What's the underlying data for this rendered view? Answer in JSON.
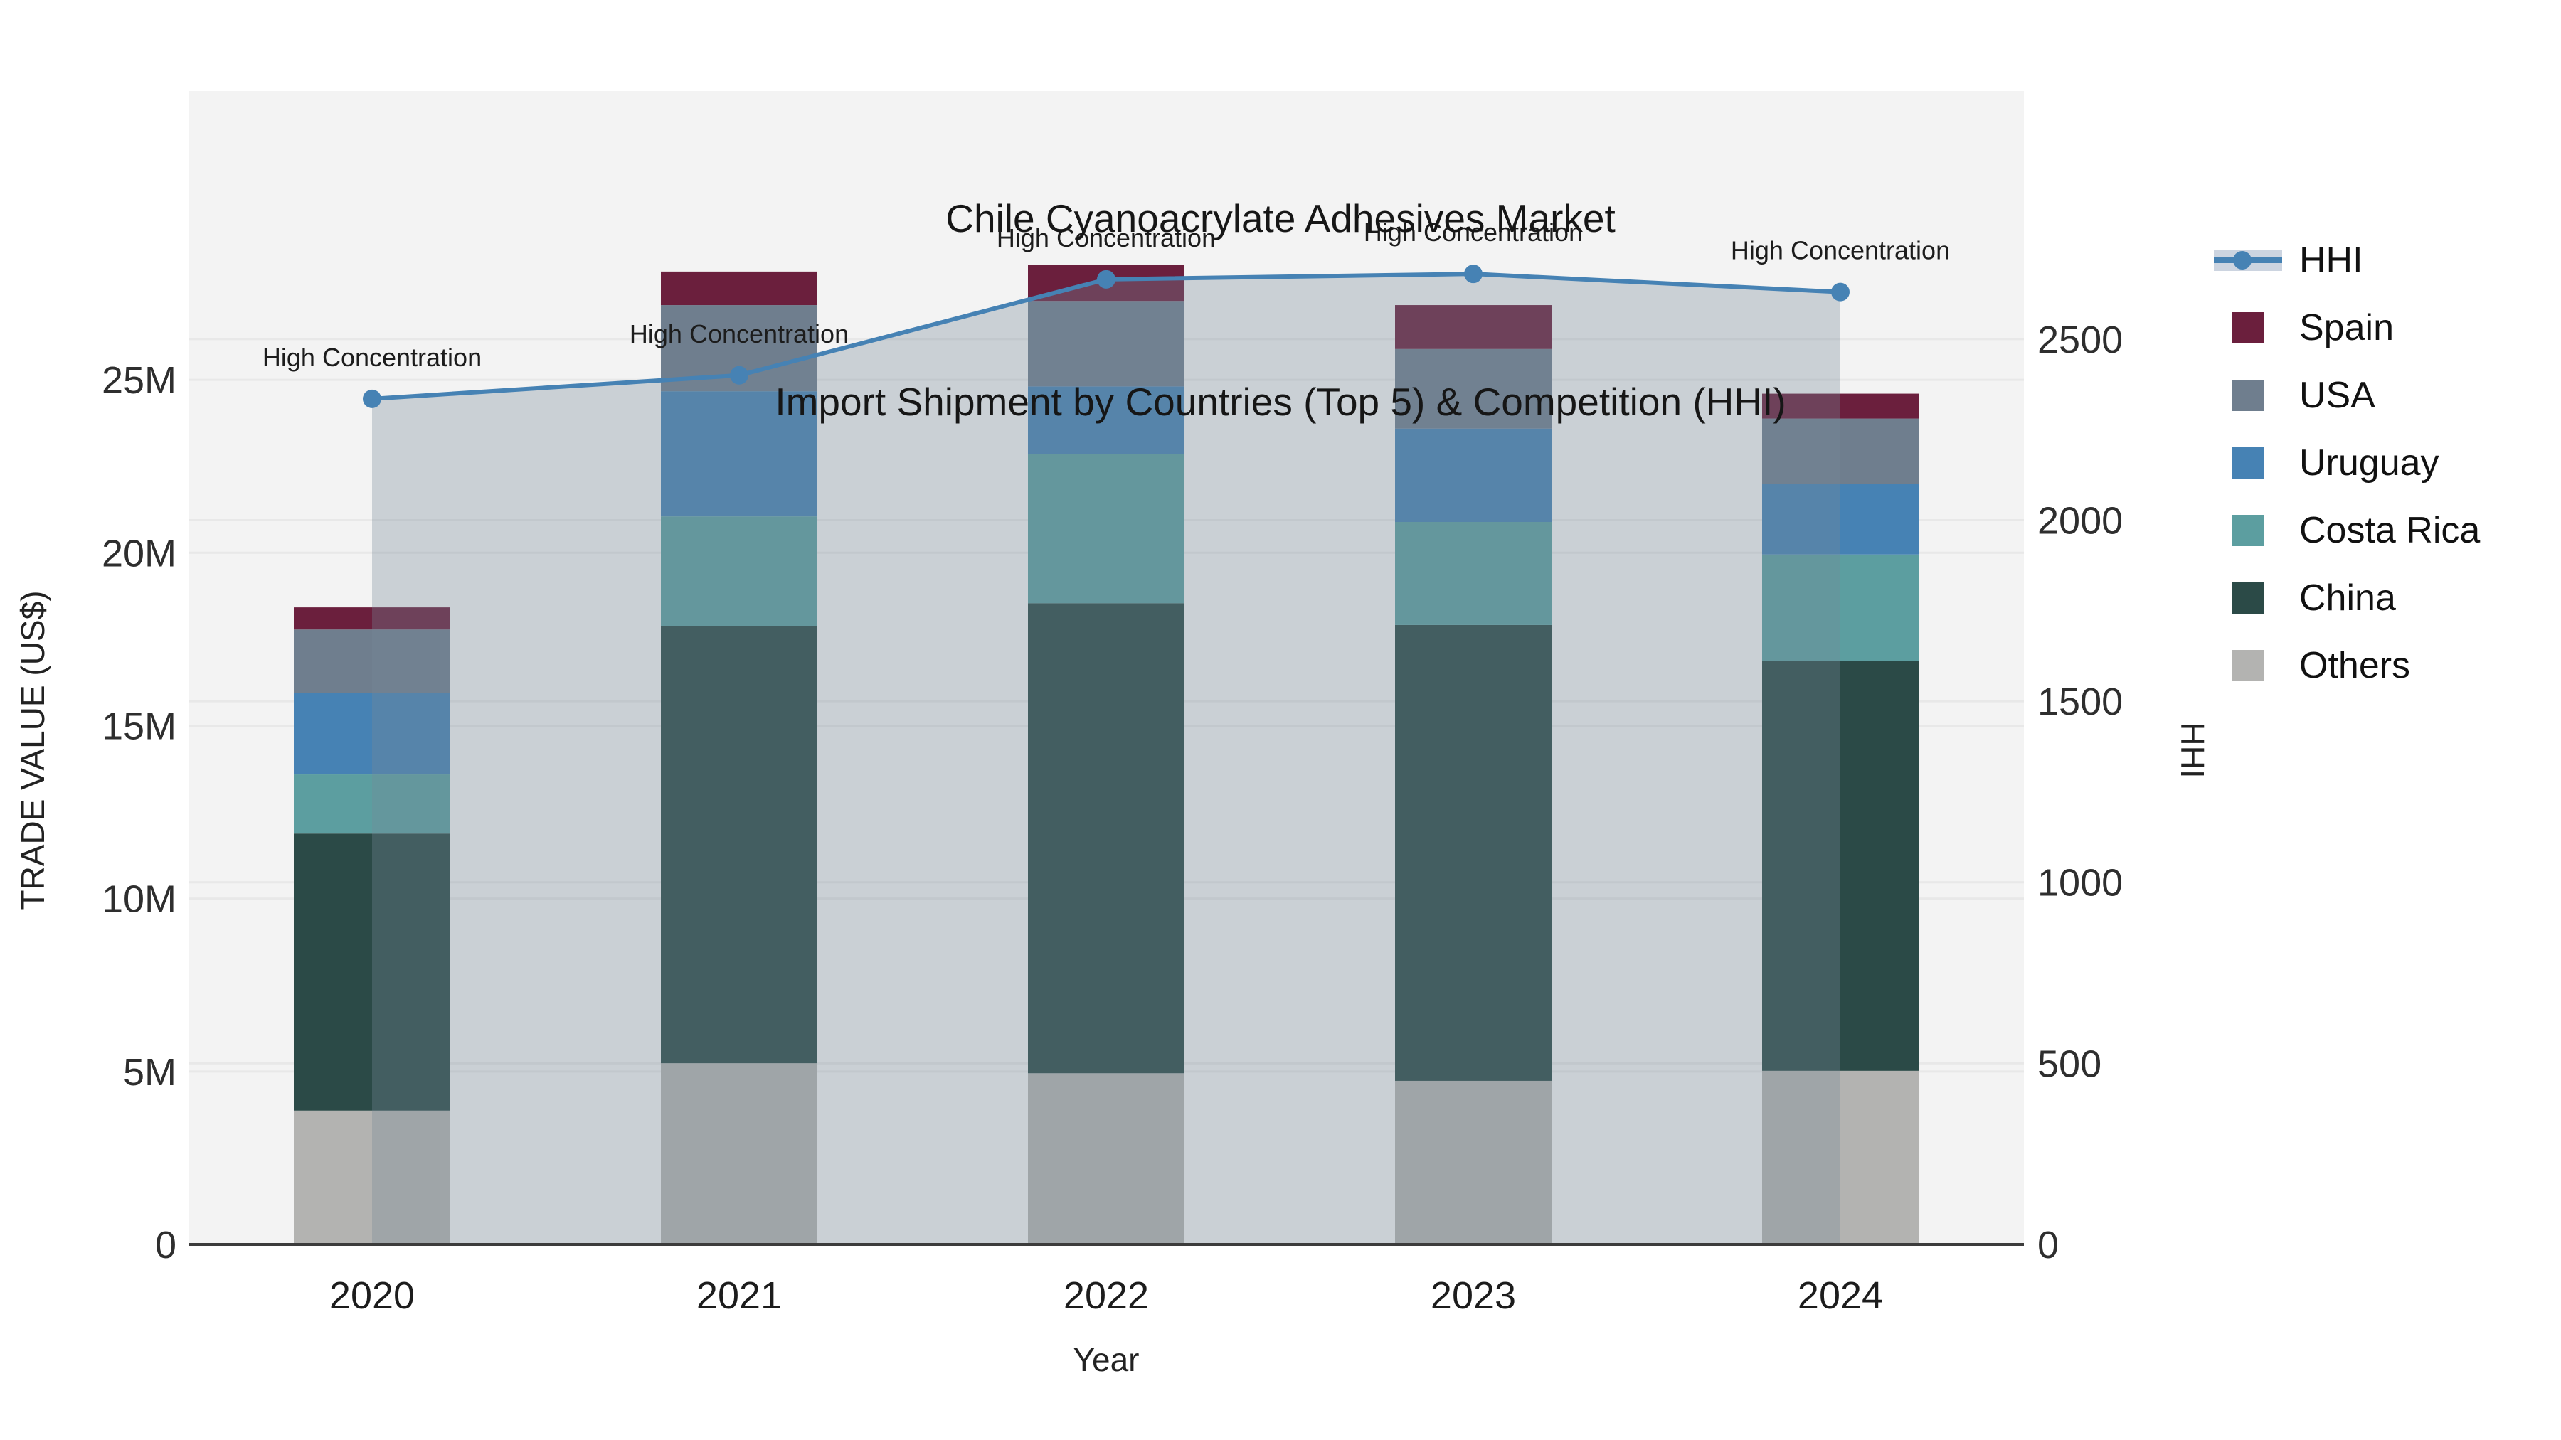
{
  "title": {
    "line1": "Chile Cyanoacrylate Adhesives Market",
    "line2": "Import Shipment by Countries (Top 5) & Competition (HHI)"
  },
  "chart_data": {
    "type": "bar",
    "subtype": "stacked-bars-with-line-overlay",
    "title": "Chile Cyanoacrylate Adhesives Market",
    "subtitle": "Import Shipment by Countries (Top 5) & Competition (HHI)",
    "x": {
      "title": "Year",
      "categories": [
        "2020",
        "2021",
        "2022",
        "2023",
        "2024"
      ]
    },
    "y_left": {
      "title": "TRADE VALUE (US$)",
      "unit": "million US$",
      "range": [
        0,
        33.35
      ],
      "ticks": [
        0,
        5,
        10,
        15,
        20,
        25
      ],
      "tick_labels": [
        "0",
        "5M",
        "10M",
        "15M",
        "20M",
        "25M"
      ],
      "grid": true
    },
    "y_right": {
      "title": "HHI",
      "range": [
        0,
        3185
      ],
      "ticks": [
        0,
        500,
        1000,
        1500,
        2000,
        2500
      ],
      "tick_labels": [
        "0",
        "500",
        "1000",
        "1500",
        "2000",
        "2500"
      ],
      "grid": true
    },
    "stack_order_bottom_to_top": [
      "Others",
      "China",
      "Costa Rica",
      "Uruguay",
      "USA",
      "Spain"
    ],
    "series": [
      {
        "name": "Spain",
        "color": "#6B1F3D",
        "values_musd": [
          0.64,
          0.97,
          1.05,
          1.27,
          0.72
        ]
      },
      {
        "name": "USA",
        "color": "#6F7E8E",
        "values_musd": [
          1.83,
          2.49,
          2.47,
          2.3,
          1.9
        ]
      },
      {
        "name": "Uruguay",
        "color": "#4682B4",
        "values_musd": [
          2.36,
          3.62,
          1.95,
          2.7,
          2.03
        ]
      },
      {
        "name": "Costa Rica",
        "color": "#5C9EA0",
        "values_musd": [
          1.71,
          3.17,
          4.32,
          2.98,
          3.09
        ]
      },
      {
        "name": "China",
        "color": "#2B4A47",
        "values_musd": [
          8.01,
          12.64,
          13.59,
          13.18,
          11.84
        ]
      },
      {
        "name": "Others",
        "color": "#B3B3B1",
        "values_musd": [
          3.87,
          5.24,
          4.95,
          4.73,
          5.02
        ]
      }
    ],
    "totals_musd": [
      18.42,
      28.13,
      28.33,
      27.15,
      24.6
    ],
    "hhi_line": {
      "name": "HHI",
      "color": "#4682B4",
      "area_fill_color": "rgba(119,136,153,0.33)",
      "values": [
        2335,
        2400,
        2665,
        2680,
        2630
      ],
      "point_annotation": "High Concentration"
    },
    "annotations": [
      "High Concentration",
      "High Concentration",
      "High Concentration",
      "High Concentration",
      "High Concentration"
    ],
    "legend": [
      {
        "label": "HHI",
        "kind": "line",
        "color": "#4682B4"
      },
      {
        "label": "Spain",
        "kind": "swatch",
        "color": "#6B1F3D"
      },
      {
        "label": "USA",
        "kind": "swatch",
        "color": "#6F7E8E"
      },
      {
        "label": "Uruguay",
        "kind": "swatch",
        "color": "#4682B4"
      },
      {
        "label": "Costa Rica",
        "kind": "swatch",
        "color": "#5C9EA0"
      },
      {
        "label": "China",
        "kind": "swatch",
        "color": "#2B4A47"
      },
      {
        "label": "Others",
        "kind": "swatch",
        "color": "#B3B3B1"
      }
    ],
    "plot_background": "#f3f3f3",
    "gridline_color": "#e8e8e8",
    "axis_line_color": "#3c3c3c"
  }
}
